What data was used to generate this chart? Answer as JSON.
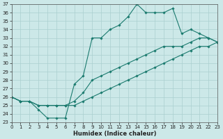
{
  "title": "",
  "xlabel": "Humidex (Indice chaleur)",
  "x_hours": [
    0,
    1,
    2,
    3,
    4,
    5,
    6,
    7,
    8,
    9,
    10,
    11,
    12,
    13,
    14,
    15,
    16,
    17,
    18,
    19,
    20,
    21,
    22,
    23
  ],
  "line_max": [
    26,
    25.5,
    25.5,
    24.5,
    23.5,
    23.5,
    23.5,
    27.5,
    28.5,
    33,
    33,
    34,
    34.5,
    35.5,
    37,
    36,
    36,
    36,
    36.5,
    33.5,
    34,
    33.5,
    33,
    32.5
  ],
  "line_mean": [
    26,
    25.5,
    25.5,
    25,
    25,
    25,
    25,
    25.5,
    26.5,
    28,
    28.5,
    29,
    29.5,
    30,
    30.5,
    31,
    31.5,
    32,
    32,
    32,
    32.5,
    33,
    33,
    32.5
  ],
  "line_min": [
    26,
    25.5,
    25.5,
    25,
    25,
    25,
    25,
    25,
    25.5,
    26,
    26.5,
    27,
    27.5,
    28,
    28.5,
    29,
    29.5,
    30,
    30.5,
    31,
    31.5,
    32,
    32,
    32.5
  ],
  "line_color": "#1a7a6e",
  "bg_color": "#cce8e8",
  "grid_color": "#aacfcf",
  "ylim": [
    23,
    37
  ],
  "xlim": [
    0,
    23
  ],
  "yticks": [
    23,
    24,
    25,
    26,
    27,
    28,
    29,
    30,
    31,
    32,
    33,
    34,
    35,
    36,
    37
  ],
  "xticks": [
    0,
    1,
    2,
    3,
    4,
    5,
    6,
    7,
    8,
    9,
    10,
    11,
    12,
    13,
    14,
    15,
    16,
    17,
    18,
    19,
    20,
    21,
    22,
    23
  ],
  "tick_fontsize": 5,
  "xlabel_fontsize": 6
}
